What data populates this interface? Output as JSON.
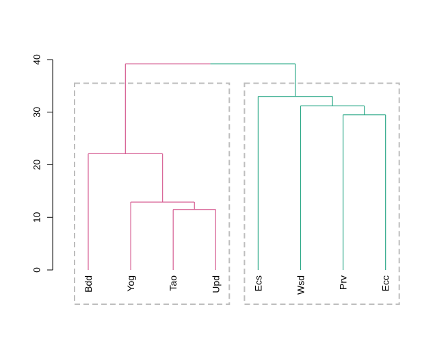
{
  "chart_data": {
    "type": "dendrogram",
    "leaves": [
      "Bdd",
      "Yog",
      "Tao",
      "Upd",
      "Ecs",
      "Wsd",
      "Prv",
      "Ecc"
    ],
    "merges": [
      {
        "left": "Tao",
        "right": "Upd",
        "height": 11.5
      },
      {
        "left": "Yog",
        "right": "Tao+Upd",
        "height": 12.9
      },
      {
        "left": "Prv",
        "right": "Ecc",
        "height": 29.5
      },
      {
        "left": "Wsd",
        "right": "Prv+Ecc",
        "height": 31.2
      },
      {
        "left": "Bdd",
        "right": "Yog+Tao+Upd",
        "height": 22.1
      },
      {
        "left": "Ecs",
        "right": "Wsd+Prv+Ecc",
        "height": 33.0
      },
      {
        "left": "Bdd+Yog+Tao+Upd",
        "right": "Ecs+Wsd+Prv+Ecc",
        "height": 39.2
      }
    ],
    "clusters": [
      {
        "members": [
          "Bdd",
          "Yog",
          "Tao",
          "Upd"
        ],
        "color": "#d65d92",
        "box_top": 35.5
      },
      {
        "members": [
          "Ecs",
          "Wsd",
          "Prv",
          "Ecc"
        ],
        "color": "#2aa887",
        "box_top": 35.5
      }
    ],
    "y_ticks": [
      0,
      10,
      20,
      30,
      40
    ],
    "ylim": [
      0,
      40
    ],
    "box_color": "#bdbdbd",
    "title": "",
    "xlabel": "",
    "ylabel": ""
  }
}
